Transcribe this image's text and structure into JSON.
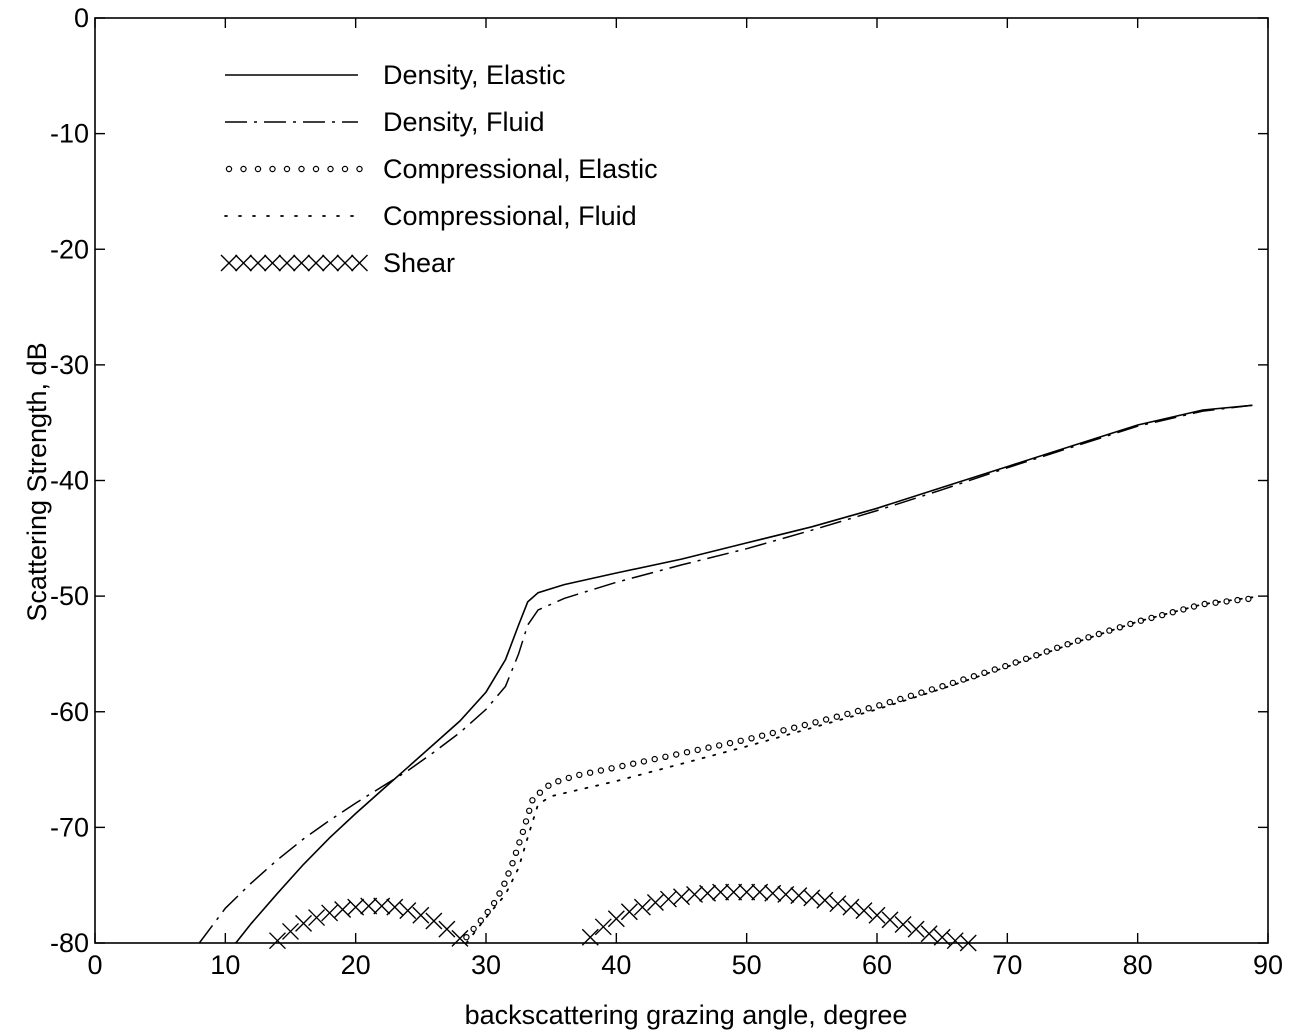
{
  "chart_data": {
    "type": "line",
    "title": "",
    "xlabel": "backscattering grazing angle, degree",
    "ylabel": "Scattering Strength, dB",
    "xlim": [
      0,
      90
    ],
    "ylim": [
      -80,
      0
    ],
    "x_ticks": [
      0,
      10,
      20,
      30,
      40,
      50,
      60,
      70,
      80,
      90
    ],
    "y_ticks": [
      0,
      -10,
      -20,
      -30,
      -40,
      -50,
      -60,
      -70,
      -80
    ],
    "grid": false,
    "legend_position": "top-left",
    "series": [
      {
        "name": "Density, Elastic",
        "style": "solid",
        "points": [
          [
            10.8,
            -80
          ],
          [
            12,
            -78.3
          ],
          [
            14,
            -75.7
          ],
          [
            16,
            -73.2
          ],
          [
            18,
            -70.9
          ],
          [
            20,
            -68.8
          ],
          [
            22,
            -66.8
          ],
          [
            24,
            -64.8
          ],
          [
            26,
            -62.8
          ],
          [
            28,
            -60.8
          ],
          [
            30,
            -58.3
          ],
          [
            31.5,
            -55.5
          ],
          [
            32.5,
            -52.5
          ],
          [
            33.2,
            -50.5
          ],
          [
            34,
            -49.7
          ],
          [
            36,
            -49
          ],
          [
            40,
            -48
          ],
          [
            45,
            -46.8
          ],
          [
            50,
            -45.4
          ],
          [
            55,
            -44
          ],
          [
            60,
            -42.4
          ],
          [
            65,
            -40.6
          ],
          [
            70,
            -38.8
          ],
          [
            75,
            -37
          ],
          [
            80,
            -35.2
          ],
          [
            85,
            -33.9
          ],
          [
            88.8,
            -33.5
          ]
        ]
      },
      {
        "name": "Density, Fluid",
        "style": "dashdot",
        "points": [
          [
            8,
            -80
          ],
          [
            9,
            -78.5
          ],
          [
            10,
            -77
          ],
          [
            12,
            -74.8
          ],
          [
            14,
            -72.8
          ],
          [
            16,
            -71
          ],
          [
            18,
            -69.4
          ],
          [
            20,
            -67.9
          ],
          [
            22,
            -66.5
          ],
          [
            24,
            -65.1
          ],
          [
            26,
            -63.5
          ],
          [
            28,
            -61.8
          ],
          [
            30,
            -59.8
          ],
          [
            31.5,
            -57.8
          ],
          [
            32.5,
            -55
          ],
          [
            33.2,
            -52.5
          ],
          [
            34,
            -51.2
          ],
          [
            36,
            -50.2
          ],
          [
            40,
            -48.8
          ],
          [
            45,
            -47.3
          ],
          [
            50,
            -45.9
          ],
          [
            55,
            -44.3
          ],
          [
            60,
            -42.6
          ],
          [
            65,
            -40.8
          ],
          [
            70,
            -38.9
          ],
          [
            75,
            -37.1
          ],
          [
            80,
            -35.3
          ],
          [
            85,
            -34
          ],
          [
            88.8,
            -33.5
          ]
        ]
      },
      {
        "name": "Compressional, Elastic",
        "style": "circles",
        "points": [
          [
            28.5,
            -79.5
          ],
          [
            29.5,
            -78.2
          ],
          [
            30.5,
            -76.8
          ],
          [
            31.3,
            -75.2
          ],
          [
            32,
            -73.2
          ],
          [
            32.8,
            -70.5
          ],
          [
            33.6,
            -67.5
          ],
          [
            35,
            -66.2
          ],
          [
            37,
            -65.5
          ],
          [
            40,
            -64.8
          ],
          [
            45,
            -63.6
          ],
          [
            50,
            -62.4
          ],
          [
            55,
            -61
          ],
          [
            60,
            -59.5
          ],
          [
            65,
            -57.8
          ],
          [
            70,
            -56
          ],
          [
            75,
            -54
          ],
          [
            80,
            -52.2
          ],
          [
            85,
            -50.7
          ],
          [
            88.8,
            -50.2
          ]
        ]
      },
      {
        "name": "Compressional, Fluid",
        "style": "dotted",
        "points": [
          [
            28.5,
            -80
          ],
          [
            30,
            -77.8
          ],
          [
            31.5,
            -75.8
          ],
          [
            32.5,
            -73.5
          ],
          [
            33.3,
            -70.5
          ],
          [
            34,
            -68
          ],
          [
            35,
            -67.3
          ],
          [
            40,
            -66
          ],
          [
            45,
            -64.5
          ],
          [
            50,
            -63
          ],
          [
            55,
            -61.4
          ],
          [
            60,
            -59.8
          ],
          [
            65,
            -58
          ],
          [
            70,
            -56.1
          ],
          [
            75,
            -54.1
          ],
          [
            80,
            -52.2
          ],
          [
            85,
            -50.7
          ],
          [
            88.8,
            -50.1
          ]
        ]
      },
      {
        "name": "Shear",
        "style": "crosses",
        "points": [
          [
            14,
            -79.8
          ],
          [
            15,
            -79
          ],
          [
            16,
            -78.3
          ],
          [
            17,
            -77.8
          ],
          [
            18,
            -77.4
          ],
          [
            19,
            -77.1
          ],
          [
            20,
            -76.9
          ],
          [
            21,
            -76.8
          ],
          [
            22,
            -76.8
          ],
          [
            23,
            -76.9
          ],
          [
            24,
            -77.2
          ],
          [
            25,
            -77.6
          ],
          [
            26,
            -78.1
          ],
          [
            27,
            -78.8
          ],
          [
            28,
            -79.6
          ],
          [
            38,
            -79.5
          ],
          [
            39,
            -78.6
          ],
          [
            40,
            -77.9
          ],
          [
            41,
            -77.3
          ],
          [
            42,
            -76.9
          ],
          [
            43,
            -76.5
          ],
          [
            44,
            -76.2
          ],
          [
            45,
            -76
          ],
          [
            46,
            -75.8
          ],
          [
            47,
            -75.7
          ],
          [
            48,
            -75.6
          ],
          [
            49,
            -75.6
          ],
          [
            50,
            -75.6
          ],
          [
            51,
            -75.6
          ],
          [
            52,
            -75.7
          ],
          [
            53,
            -75.8
          ],
          [
            54,
            -75.9
          ],
          [
            55,
            -76.1
          ],
          [
            56,
            -76.3
          ],
          [
            57,
            -76.6
          ],
          [
            58,
            -76.9
          ],
          [
            59,
            -77.2
          ],
          [
            60,
            -77.6
          ],
          [
            61,
            -78
          ],
          [
            62,
            -78.4
          ],
          [
            63,
            -78.8
          ],
          [
            64,
            -79.2
          ],
          [
            65,
            -79.5
          ],
          [
            66,
            -79.8
          ],
          [
            67,
            -80
          ]
        ]
      }
    ]
  }
}
